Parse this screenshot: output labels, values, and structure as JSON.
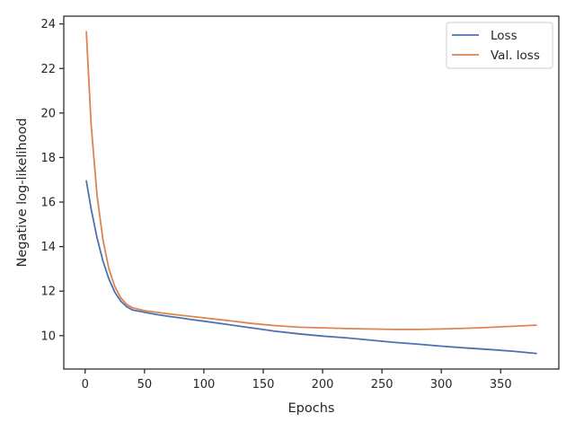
{
  "chart_data": {
    "type": "line",
    "title": "",
    "xlabel": "Epochs",
    "ylabel": "Negative log-likelihood",
    "xlim": [
      -18,
      399
    ],
    "ylim": [
      8.5,
      24.35
    ],
    "xticks": [
      0,
      50,
      100,
      150,
      200,
      250,
      300,
      350
    ],
    "yticks": [
      10,
      12,
      14,
      16,
      18,
      20,
      22,
      24
    ],
    "grid": false,
    "legend_position": "top-right",
    "colors": {
      "Loss": "#4c72b0",
      "Val. loss": "#dd8452"
    },
    "x": [
      1,
      5,
      10,
      15,
      20,
      25,
      30,
      35,
      40,
      50,
      60,
      70,
      80,
      90,
      100,
      120,
      140,
      160,
      180,
      200,
      220,
      240,
      260,
      280,
      300,
      320,
      340,
      360,
      380
    ],
    "series": [
      {
        "name": "Loss",
        "values": [
          16.95,
          15.7,
          14.4,
          13.35,
          12.55,
          11.95,
          11.55,
          11.3,
          11.15,
          11.05,
          10.95,
          10.87,
          10.8,
          10.72,
          10.65,
          10.5,
          10.35,
          10.2,
          10.08,
          9.98,
          9.9,
          9.8,
          9.7,
          9.62,
          9.53,
          9.45,
          9.38,
          9.3,
          9.2
        ]
      },
      {
        "name": "Val. loss",
        "values": [
          23.65,
          19.5,
          16.3,
          14.3,
          13.0,
          12.2,
          11.7,
          11.4,
          11.25,
          11.12,
          11.05,
          10.98,
          10.92,
          10.86,
          10.8,
          10.68,
          10.55,
          10.45,
          10.38,
          10.35,
          10.32,
          10.3,
          10.28,
          10.28,
          10.3,
          10.33,
          10.37,
          10.42,
          10.47
        ]
      }
    ]
  }
}
